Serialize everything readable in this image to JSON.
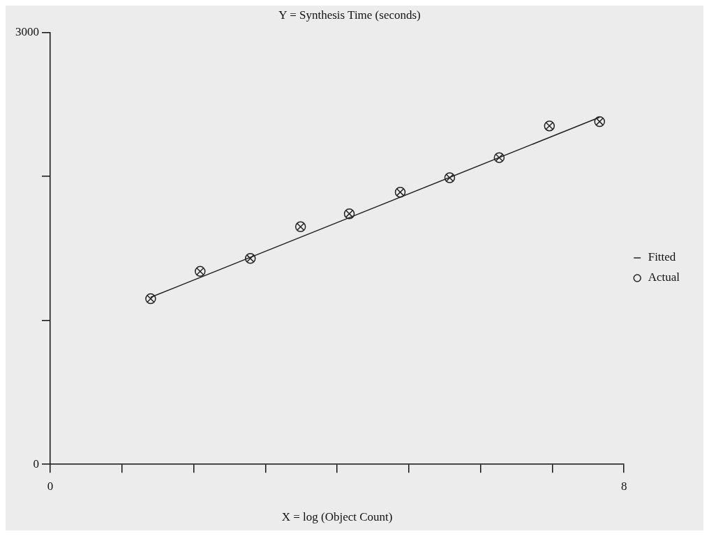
{
  "chart_data": {
    "type": "scatter",
    "ylabel": "Y = Synthesis Time (seconds)",
    "xlabel": "X = log (Object Count)",
    "xlim": [
      0,
      8
    ],
    "xticks": [
      0,
      {
        "value": 1,
        "label": null
      },
      {
        "value": 2,
        "label": null
      },
      {
        "value": 3,
        "label": null
      },
      {
        "value": 4,
        "label": null
      },
      {
        "value": 5,
        "label": null
      },
      {
        "value": 6,
        "label": null
      },
      {
        "value": 7,
        "label": null
      },
      8
    ],
    "ylim": [
      0,
      3000
    ],
    "yticks": [
      0,
      {
        "value": 1000,
        "label": null
      },
      {
        "value": 2000,
        "label": null
      },
      3000
    ],
    "grid": false,
    "legend": "right",
    "series": [
      {
        "name": "Fitted",
        "type": "line",
        "color": "#222222",
        "x": [
          1.4,
          7.66
        ],
        "values": [
          1160,
          2410
        ]
      },
      {
        "name": "Actual",
        "marker": "circle",
        "color": "#222222",
        "x": [
          1.4,
          2.09,
          2.79,
          3.49,
          4.17,
          4.88,
          5.57,
          6.26,
          6.96,
          7.66
        ],
        "values": [
          1150,
          1340,
          1430,
          1650,
          1740,
          1890,
          1990,
          2130,
          2350,
          2380
        ]
      }
    ]
  }
}
